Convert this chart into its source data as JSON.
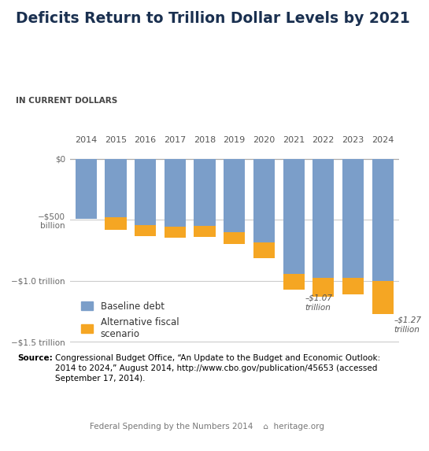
{
  "title": "Deficits Return to Trillion Dollar Levels by 2021",
  "subtitle": "IN CURRENT DOLLARS",
  "years": [
    2014,
    2015,
    2016,
    2017,
    2018,
    2019,
    2020,
    2021,
    2022,
    2023,
    2024
  ],
  "baseline_values": [
    -492,
    -478,
    -540,
    -555,
    -548,
    -600,
    -687,
    -940,
    -974,
    -978,
    -1000
  ],
  "alternative_extra": [
    0,
    -105,
    -90,
    -90,
    -90,
    -100,
    -125,
    -130,
    -155,
    -130,
    -270
  ],
  "bar_color_blue": "#7B9EC9",
  "bar_color_orange": "#F5A623",
  "bg_color": "#FFFFFF",
  "title_color": "#1a3050",
  "ytick_values": [
    0,
    -500,
    -1000,
    -1500
  ],
  "ylim": [
    -1580,
    60
  ],
  "annotation_2021_text": "–$1.07\ntrillion",
  "annotation_2024_text": "–$1.27\ntrillion",
  "legend_blue": "Baseline debt",
  "legend_orange": "Alternative fiscal\nscenario",
  "grid_color": "#CCCCCC",
  "footer_color": "#777777"
}
